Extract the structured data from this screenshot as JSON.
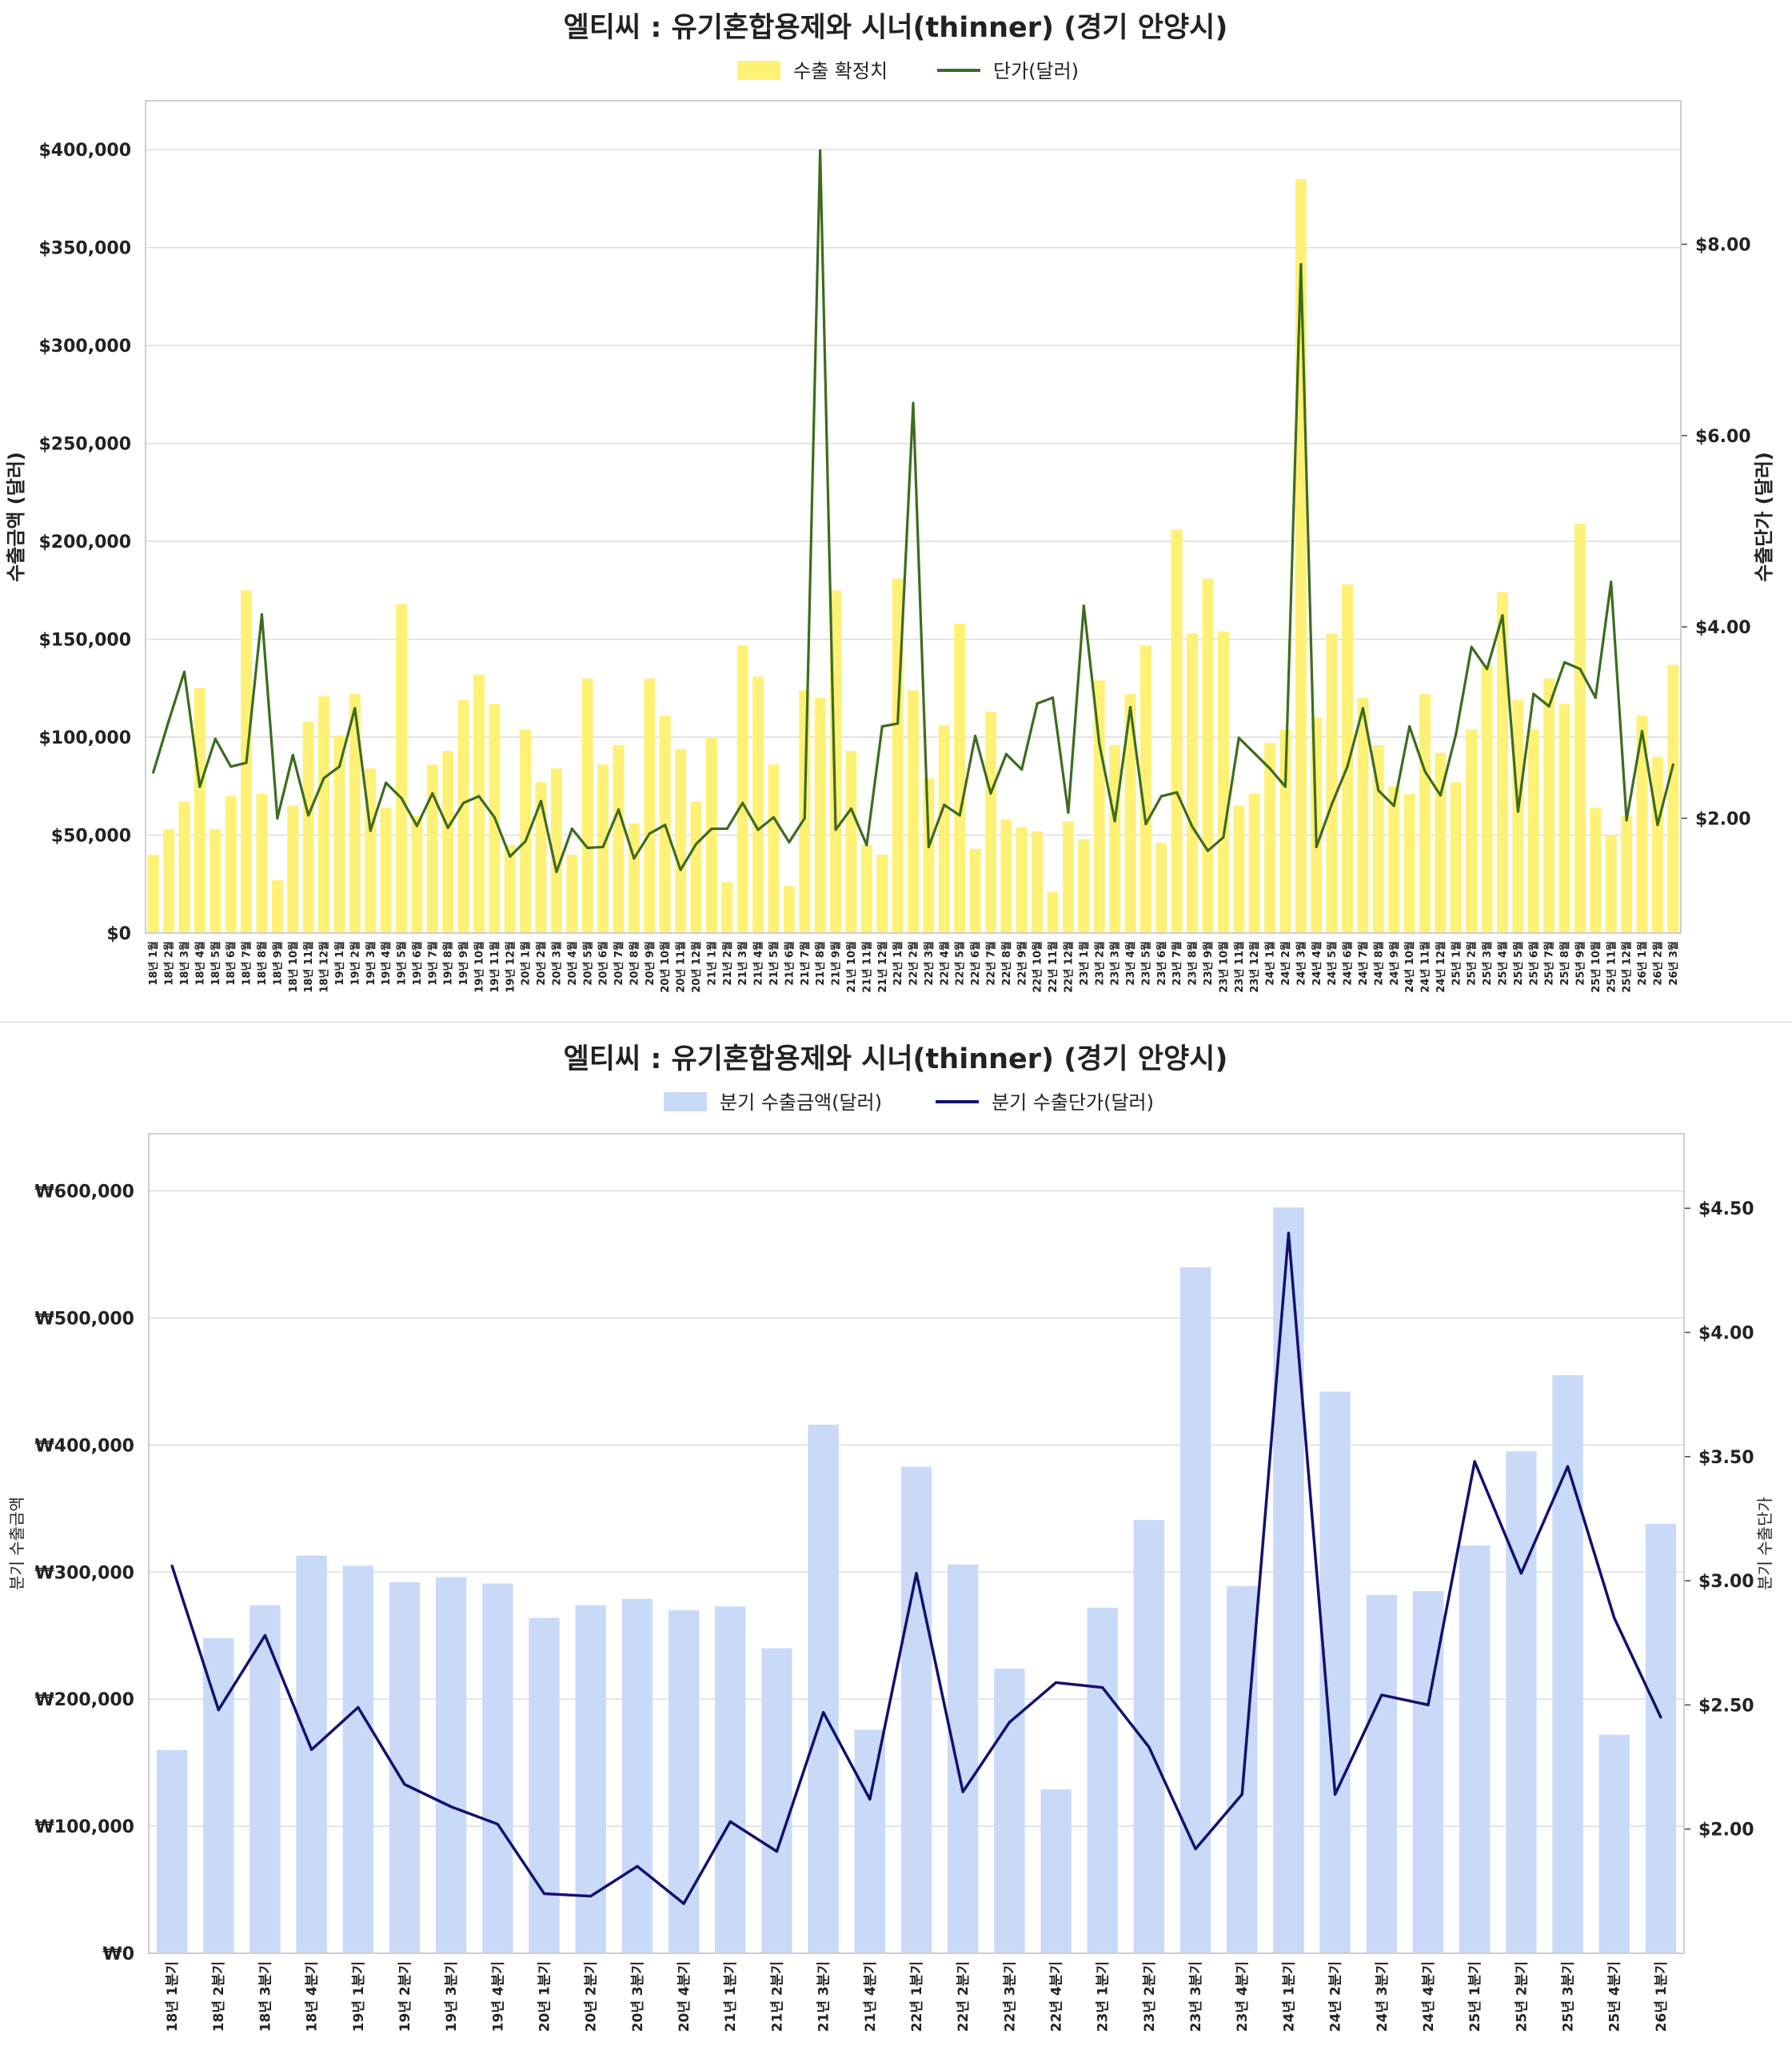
{
  "chart_data": [
    {
      "type": "bar+line",
      "title": "엘티씨 : 유기혼합용제와 시너(thinner) (경기 안양시)",
      "legend": [
        "수출 확정치",
        "단가(달러)"
      ],
      "legend_position": "top-center",
      "ylabel_left": "수출금액 (달러)",
      "ylabel_right": "수출단가 (달러)",
      "colors": {
        "bar": "#fff176",
        "line": "#3d6b1f"
      },
      "grid": true,
      "ylim_left": [
        0,
        425000
      ],
      "ylim_right": [
        0.8,
        9.5
      ],
      "yticks_left": [
        "$0",
        "$50,000",
        "$100,000",
        "$150,000",
        "$200,000",
        "$250,000",
        "$300,000",
        "$350,000",
        "$400,000"
      ],
      "yticks_right": [
        "$2.00",
        "$4.00",
        "$6.00",
        "$8.00"
      ],
      "categories": [
        "18년 1월",
        "18년 2월",
        "18년 3월",
        "18년 4월",
        "18년 5월",
        "18년 6월",
        "18년 7월",
        "18년 8월",
        "18년 9월",
        "18년 10월",
        "18년 11월",
        "18년 12월",
        "19년 1월",
        "19년 2월",
        "19년 3월",
        "19년 4월",
        "19년 5월",
        "19년 6월",
        "19년 7월",
        "19년 8월",
        "19년 9월",
        "19년 10월",
        "19년 11월",
        "19년 12월",
        "20년 1월",
        "20년 2월",
        "20년 3월",
        "20년 4월",
        "20년 5월",
        "20년 6월",
        "20년 7월",
        "20년 8월",
        "20년 9월",
        "20년 10월",
        "20년 11월",
        "20년 12월",
        "21년 1월",
        "21년 2월",
        "21년 3월",
        "21년 4월",
        "21년 5월",
        "21년 6월",
        "21년 7월",
        "21년 8월",
        "21년 9월",
        "21년 10월",
        "21년 11월",
        "21년 12월",
        "22년 1월",
        "22년 2월",
        "22년 3월",
        "22년 4월",
        "22년 5월",
        "22년 6월",
        "22년 7월",
        "22년 8월",
        "22년 9월",
        "22년 10월",
        "22년 11월",
        "22년 12월",
        "23년 1월",
        "23년 2월",
        "23년 3월",
        "23년 4월",
        "23년 5월",
        "23년 6월",
        "23년 7월",
        "23년 8월",
        "23년 9월",
        "23년 10월",
        "23년 11월",
        "23년 12월",
        "24년 1월",
        "24년 2월",
        "24년 3월",
        "24년 4월",
        "24년 5월",
        "24년 6월",
        "24년 7월",
        "24년 8월",
        "24년 9월",
        "24년 10월",
        "24년 11월",
        "24년 12월",
        "25년 1월",
        "25년 2월",
        "25년 3월",
        "25년 4월",
        "25년 5월",
        "25년 6월",
        "25년 7월",
        "25년 8월",
        "25년 9월",
        "25년 10월",
        "25년 11월",
        "25년 12월",
        "26년 1월",
        "26년 2월",
        "26년 3월"
      ],
      "series": [
        {
          "name": "수출 확정치",
          "kind": "bar",
          "axis": "left",
          "values": [
            40000,
            53000,
            67000,
            125000,
            53000,
            70000,
            175000,
            71000,
            27000,
            65000,
            108000,
            121000,
            101000,
            122000,
            84000,
            64000,
            168000,
            60000,
            86000,
            93000,
            119000,
            132000,
            117000,
            45000,
            104000,
            77000,
            84000,
            40000,
            130000,
            86000,
            96000,
            56000,
            130000,
            111000,
            94000,
            67000,
            100000,
            26000,
            147000,
            131000,
            86000,
            24000,
            124000,
            120000,
            175000,
            93000,
            45000,
            40000,
            181000,
            124000,
            79000,
            106000,
            158000,
            43000,
            113000,
            58000,
            54000,
            52000,
            21000,
            57000,
            48000,
            129000,
            96000,
            122000,
            147000,
            46000,
            206000,
            153000,
            181000,
            154000,
            65000,
            71000,
            97000,
            104000,
            385000,
            110000,
            153000,
            178000,
            120000,
            96000,
            75000,
            71000,
            122000,
            92000,
            77000,
            104000,
            137000,
            174000,
            119000,
            104000,
            130000,
            117000,
            209000,
            64000,
            50000,
            60000,
            111000,
            90000,
            137000
          ]
        },
        {
          "name": "단가(달러)",
          "kind": "line",
          "axis": "right",
          "values": [
            2.48,
            3.02,
            3.53,
            2.33,
            2.83,
            2.54,
            2.58,
            4.13,
            2.0,
            2.66,
            2.03,
            2.42,
            2.54,
            3.15,
            1.87,
            2.37,
            2.21,
            1.92,
            2.26,
            1.9,
            2.16,
            2.23,
            2.01,
            1.6,
            1.76,
            2.18,
            1.44,
            1.89,
            1.69,
            1.7,
            2.09,
            1.58,
            1.84,
            1.93,
            1.46,
            1.73,
            1.89,
            1.89,
            2.16,
            1.88,
            2.01,
            1.75,
            2.0,
            8.98,
            1.88,
            2.1,
            1.72,
            2.96,
            2.99,
            6.34,
            1.7,
            2.14,
            2.03,
            2.86,
            2.26,
            2.67,
            2.51,
            3.2,
            3.26,
            2.06,
            4.22,
            2.78,
            1.97,
            3.16,
            1.94,
            2.23,
            2.27,
            1.91,
            1.66,
            1.8,
            2.84,
            2.68,
            2.52,
            2.33,
            7.79,
            1.7,
            2.15,
            2.54,
            3.15,
            2.29,
            2.13,
            2.96,
            2.49,
            2.24,
            2.88,
            3.79,
            3.56,
            4.12,
            2.07,
            3.3,
            3.17,
            3.63,
            3.56,
            3.26,
            4.47,
            1.98,
            2.91,
            1.93,
            2.56
          ]
        }
      ]
    },
    {
      "type": "bar+line",
      "title": "엘티씨 : 유기혼합용제와 시너(thinner) (경기 안양시)",
      "legend": [
        "분기 수출금액(달러)",
        "분기 수출단가(달러)"
      ],
      "legend_position": "top-center",
      "ylabel_left": "분기 수출금액",
      "ylabel_right": "분기 수출단가",
      "colors": {
        "bar": "#c9daf8",
        "line": "#14106e"
      },
      "grid": true,
      "ylim_left": [
        0,
        645000
      ],
      "ylim_right": [
        1.5,
        4.8
      ],
      "yticks_left": [
        "₩0",
        "₩100,000",
        "₩200,000",
        "₩300,000",
        "₩400,000",
        "₩500,000",
        "₩600,000"
      ],
      "yticks_right": [
        "$2.00",
        "$2.50",
        "$3.00",
        "$3.50",
        "$4.00",
        "$4.50"
      ],
      "categories": [
        "18년 1분기",
        "18년 2분기",
        "18년 3분기",
        "18년 4분기",
        "19년 1분기",
        "19년 2분기",
        "19년 3분기",
        "19년 4분기",
        "20년 1분기",
        "20년 2분기",
        "20년 3분기",
        "20년 4분기",
        "21년 1분기",
        "21년 2분기",
        "21년 3분기",
        "21년 4분기",
        "22년 1분기",
        "22년 2분기",
        "22년 3분기",
        "22년 4분기",
        "23년 1분기",
        "23년 2분기",
        "23년 3분기",
        "23년 4분기",
        "24년 1분기",
        "24년 2분기",
        "24년 3분기",
        "24년 4분기",
        "25년 1분기",
        "25년 2분기",
        "25년 3분기",
        "25년 4분기",
        "26년 1분기"
      ],
      "series": [
        {
          "name": "분기 수출금액(달러)",
          "kind": "bar",
          "axis": "left",
          "values": [
            160000,
            248000,
            274000,
            313000,
            305000,
            292000,
            296000,
            291000,
            264000,
            274000,
            279000,
            270000,
            273000,
            240000,
            416000,
            176000,
            383000,
            306000,
            224000,
            129000,
            272000,
            341000,
            540000,
            289000,
            587000,
            442000,
            282000,
            285000,
            321000,
            395000,
            455000,
            172000,
            338000
          ]
        },
        {
          "name": "분기 수출단가(달러)",
          "kind": "line",
          "axis": "right",
          "values": [
            3.06,
            2.48,
            2.78,
            2.32,
            2.49,
            2.18,
            2.09,
            2.02,
            1.74,
            1.73,
            1.85,
            1.7,
            2.03,
            1.91,
            2.47,
            2.12,
            3.03,
            2.15,
            2.43,
            2.59,
            2.57,
            2.33,
            1.92,
            2.14,
            4.4,
            2.14,
            2.54,
            2.5,
            3.48,
            3.03,
            3.46,
            2.85,
            2.45
          ]
        }
      ]
    }
  ]
}
